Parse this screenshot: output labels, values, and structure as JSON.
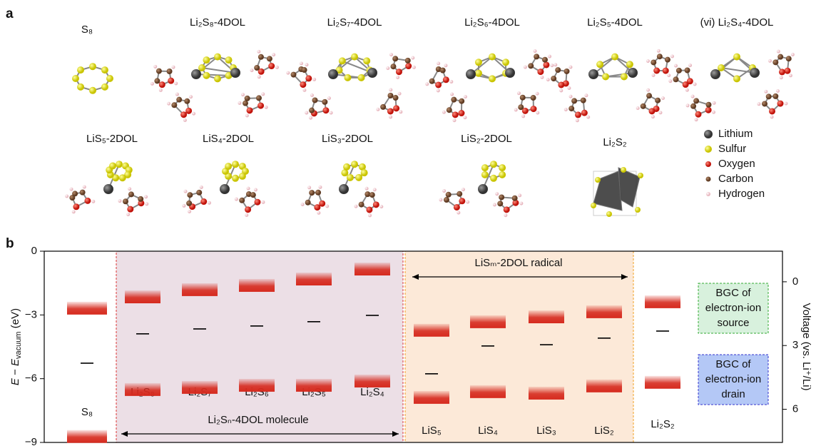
{
  "panel_a": {
    "label": "a",
    "structures": [
      "S₈",
      "Li₂S₈-4DOL",
      "Li₂S₇-4DOL",
      "Li₂S₆-4DOL",
      "Li₂S₅-4DOL",
      "(vi) Li₂S₄-4DOL",
      "LiS₅-2DOL",
      "LiS₄-2DOL",
      "LiS₃-2DOL",
      "LiS₂-2DOL",
      "Li₂S₂"
    ],
    "legend": [
      "Lithium",
      "Sulfur",
      "Oxygen",
      "Carbon",
      "Hydrogen"
    ]
  },
  "chart_data": {
    "type": "energy-level",
    "panel_label": "b",
    "categories": [
      "S₈",
      "Li₂S₈",
      "Li₂S₇",
      "Li₂S₆",
      "Li₂S₅",
      "Li₂S₄",
      "LiS₅",
      "LiS₄",
      "LiS₃",
      "LiS₂",
      "Li₂S₂"
    ],
    "series": [
      {
        "color": "#d62a1e",
        "values": [
          -2.68,
          -2.15,
          -1.81,
          -1.61,
          -1.31,
          -0.84,
          -3.72,
          -3.32,
          -3.09,
          -2.85,
          -2.38
        ]
      },
      {
        "color": "#000000",
        "values": [
          -5.27,
          -3.89,
          -3.66,
          -3.52,
          -3.32,
          -3.02,
          -5.77,
          -4.46,
          -4.4,
          -4.09,
          -3.76
        ]
      },
      {
        "color": "#d62a1e",
        "values": [
          -8.72,
          -6.51,
          -6.41,
          -6.31,
          -6.31,
          -6.11,
          -6.88,
          -6.61,
          -6.68,
          -6.34,
          -6.17
        ]
      }
    ],
    "ylim": [
      -9,
      0
    ],
    "yticks": [
      {
        "value": -9,
        "label": "−9"
      },
      {
        "value": -6,
        "label": "−6"
      },
      {
        "value": -3,
        "label": "−3"
      },
      0
    ],
    "y_label": [
      "E",
      " − ",
      "E",
      "vacuum",
      " (eV)"
    ],
    "y2lim": [
      7.56,
      -1.44
    ],
    "y2ticks": [
      0,
      3,
      6
    ],
    "y2_label": "Voltage (vs. Li⁺/Li)",
    "regions": [
      {
        "label": "Li₂Sₙ-4DOL molecule",
        "color": "#ecdfe6"
      },
      {
        "label": "LiSₘ-2DOL radical",
        "color": "#fce9d8"
      }
    ],
    "boxes": [
      {
        "lines": [
          "BGC of",
          "electron-ion",
          "source"
        ],
        "color": "#d8f1dd"
      },
      {
        "lines": [
          "BGC of",
          "electron-ion",
          "drain"
        ],
        "color": "#b4c8f6"
      }
    ]
  }
}
